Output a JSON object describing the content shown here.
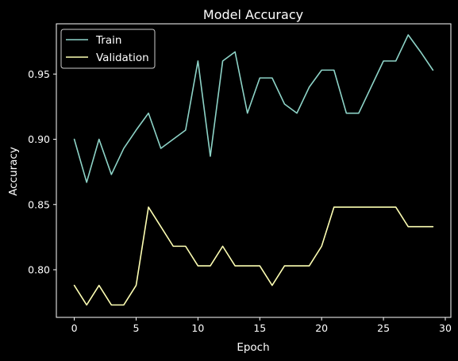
{
  "chart_data": {
    "type": "line",
    "title": "Model Accuracy",
    "xlabel": "Epoch",
    "ylabel": "Accuracy",
    "xlim": [
      -1.45,
      30.45
    ],
    "ylim": [
      0.7635,
      0.9885
    ],
    "xticks": [
      0,
      5,
      10,
      15,
      20,
      25,
      30
    ],
    "yticks": [
      0.8,
      0.85,
      0.9,
      0.95
    ],
    "grid": false,
    "legend_position": "top-left",
    "x": [
      0,
      1,
      2,
      3,
      4,
      5,
      6,
      7,
      8,
      9,
      10,
      11,
      12,
      13,
      14,
      15,
      16,
      17,
      18,
      19,
      20,
      21,
      22,
      23,
      24,
      25,
      26,
      27,
      28,
      29
    ],
    "series": [
      {
        "name": "Train",
        "color": "#8dd3c7",
        "values": [
          0.9,
          0.867,
          0.9,
          0.873,
          0.893,
          0.907,
          0.92,
          0.893,
          0.9,
          0.907,
          0.96,
          0.887,
          0.96,
          0.967,
          0.92,
          0.947,
          0.947,
          0.927,
          0.92,
          0.94,
          0.953,
          0.953,
          0.92,
          0.92,
          0.94,
          0.96,
          0.96,
          0.98,
          0.967,
          0.953
        ]
      },
      {
        "name": "Validation",
        "color": "#feffb3",
        "values": [
          0.788,
          0.773,
          0.788,
          0.773,
          0.773,
          0.788,
          0.848,
          0.833,
          0.818,
          0.818,
          0.803,
          0.803,
          0.818,
          0.803,
          0.803,
          0.803,
          0.788,
          0.803,
          0.803,
          0.803,
          0.818,
          0.848,
          0.848,
          0.848,
          0.848,
          0.848,
          0.848,
          0.833,
          0.833,
          0.833
        ]
      }
    ]
  }
}
